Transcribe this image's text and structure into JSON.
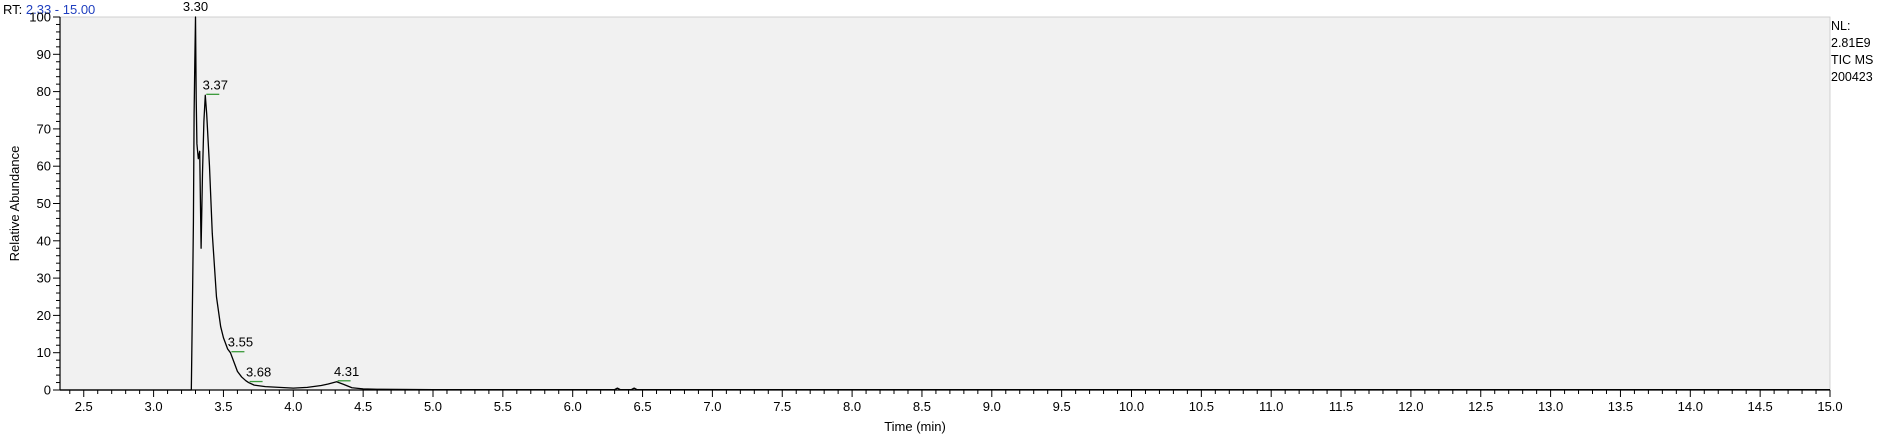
{
  "header": {
    "rt_label": "RT:",
    "rt_range": "2.33 - 15.00"
  },
  "info": {
    "nl_label": "NL:",
    "nl_value": "2.81E9",
    "trace": "TIC  MS",
    "file": "200423"
  },
  "colors": {
    "plot_bg": "#f1f1f1",
    "trace": "#000000",
    "peak_mark": "#3a9a3a",
    "axis": "#000000",
    "header_range": "#1f3fbf"
  },
  "chart_data": {
    "type": "line",
    "title": "",
    "xlabel": "Time (min)",
    "ylabel": "Relative Abundance",
    "xlim": [
      2.33,
      15.0
    ],
    "ylim": [
      0,
      100
    ],
    "x_ticks": [
      "2.5",
      "3.0",
      "3.5",
      "4.0",
      "4.5",
      "5.0",
      "5.5",
      "6.0",
      "6.5",
      "7.0",
      "7.5",
      "8.0",
      "8.5",
      "9.0",
      "9.5",
      "10.0",
      "10.5",
      "11.0",
      "11.5",
      "12.0",
      "12.5",
      "13.0",
      "13.5",
      "14.0",
      "14.5",
      "15.0"
    ],
    "y_ticks": [
      "0",
      "10",
      "20",
      "30",
      "40",
      "50",
      "60",
      "70",
      "80",
      "90",
      "100"
    ],
    "series": [
      {
        "x": [
          2.33,
          3.27,
          3.28,
          3.285,
          3.29,
          3.295,
          3.3,
          3.305,
          3.31,
          3.32,
          3.33,
          3.34,
          3.35,
          3.36,
          3.37,
          3.38,
          3.4,
          3.42,
          3.45,
          3.48,
          3.5,
          3.53,
          3.55,
          3.58,
          3.6,
          3.63,
          3.66,
          3.68,
          3.72,
          3.8,
          3.9,
          4.0,
          4.1,
          4.2,
          4.25,
          4.31,
          4.36,
          4.42,
          4.5,
          4.6,
          5.0,
          6.0,
          6.3,
          6.32,
          6.34,
          6.42,
          6.44,
          6.46,
          7.0,
          8.0,
          10.0,
          12.0,
          15.0
        ],
        "y": [
          0,
          0,
          29,
          45,
          74,
          88,
          100,
          78,
          66,
          62,
          64,
          38,
          58,
          72,
          79,
          74,
          60,
          42,
          25,
          17,
          14,
          11,
          10,
          7,
          5,
          3.5,
          2.5,
          2,
          1.3,
          0.9,
          0.7,
          0.5,
          0.7,
          1.2,
          1.6,
          2.2,
          1.5,
          0.6,
          0.3,
          0.2,
          0.1,
          0.1,
          0.1,
          0.5,
          0.1,
          0.1,
          0.5,
          0.1,
          0.1,
          0.1,
          0.1,
          0.1,
          0.1
        ]
      }
    ],
    "peak_labels": [
      {
        "text": "3.30",
        "x": 3.3,
        "y": 100
      },
      {
        "text": "3.37",
        "x": 3.37,
        "y": 79
      },
      {
        "text": "3.55",
        "x": 3.55,
        "y": 10
      },
      {
        "text": "3.68",
        "x": 3.68,
        "y": 2
      },
      {
        "text": "4.31",
        "x": 4.31,
        "y": 2.2
      }
    ],
    "grid": false,
    "legend": "none"
  }
}
